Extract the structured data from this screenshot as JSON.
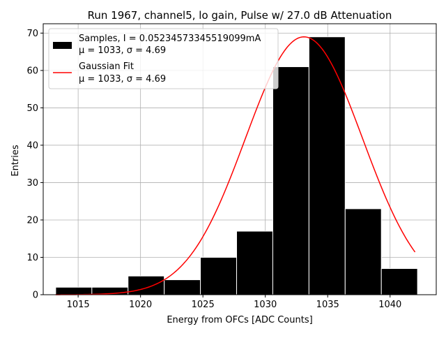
{
  "chart_data": {
    "type": "bar",
    "title": "Run 1967, channel5, lo gain, Pulse w/ 27.0 dB Attenuation",
    "xlabel": "Energy from OFCs [ADC Counts]",
    "ylabel": "Entries",
    "xlim": [
      1012.2,
      1043.7
    ],
    "ylim": [
      0,
      72.5
    ],
    "xticks": [
      1015,
      1020,
      1025,
      1030,
      1035,
      1040
    ],
    "yticks": [
      0,
      10,
      20,
      30,
      40,
      50,
      60,
      70
    ],
    "grid": true,
    "legend_position": "upper-left",
    "histogram": {
      "name": "Samples, I = 0.05234573345519099mA",
      "stats_label": "μ = 1033, σ = 4.69",
      "color": "#000000",
      "edge_color": "#ffffff",
      "bin_edges": [
        1013.2,
        1016.1,
        1019.0,
        1021.9,
        1024.8,
        1027.7,
        1030.6,
        1033.5,
        1036.4,
        1039.3,
        1042.2
      ],
      "counts": [
        2,
        2,
        5,
        4,
        10,
        17,
        61,
        69,
        23,
        7
      ]
    },
    "fit": {
      "name": "Gaussian Fit",
      "stats_label": "μ = 1033, σ = 4.69",
      "color": "#ff0000",
      "mu": 1033.1,
      "sigma": 4.69,
      "amplitude": 69,
      "x_range": [
        1013.2,
        1042.0
      ]
    }
  }
}
